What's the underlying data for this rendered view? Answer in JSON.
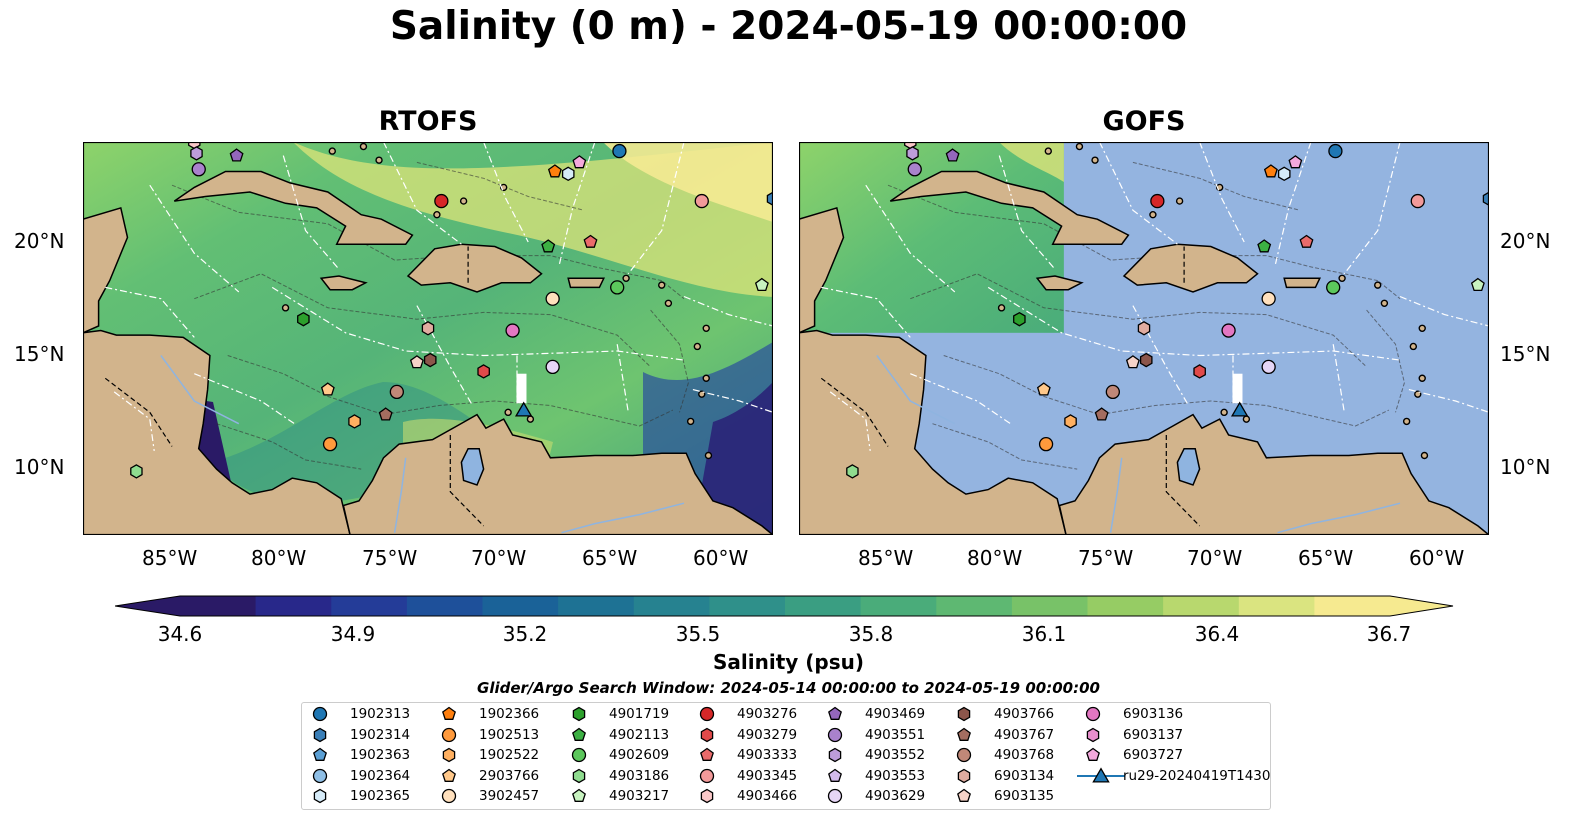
{
  "title": "Salinity (0 m) - 2024-05-19 00:00:00",
  "panels": [
    {
      "title": "RTOFS",
      "mode": "field"
    },
    {
      "title": "GOFS",
      "mode": "masked"
    }
  ],
  "lat_labels": [
    "20°N",
    "15°N",
    "10°N"
  ],
  "lon_labels": [
    "85°W",
    "80°W",
    "75°W",
    "70°W",
    "65°W",
    "60°W"
  ],
  "colorbar": {
    "min": 34.6,
    "max": 36.7,
    "extend": "both",
    "ticks": [
      "34.6",
      "34.9",
      "35.2",
      "35.5",
      "35.8",
      "36.1",
      "36.4",
      "36.7"
    ],
    "colors": [
      "#2a1a66",
      "#28288a",
      "#243c98",
      "#1e509a",
      "#1a6298",
      "#1e7294",
      "#268290",
      "#2f908a",
      "#3a9e82",
      "#4aac7a",
      "#5eb872",
      "#78c268",
      "#96cc64",
      "#b8d86e",
      "#dae480",
      "#f6ea90"
    ],
    "label": "Salinity (psu)"
  },
  "search_window": "Glider/Argo Search Window: 2024-05-14 00:00:00 to 2024-05-19 00:00:00",
  "legend": [
    {
      "label": "1902313",
      "marker": "circle",
      "color": "#1f77b4"
    },
    {
      "label": "1902314",
      "marker": "hexagon",
      "color": "#3a7fb8"
    },
    {
      "label": "1902363",
      "marker": "pentagon",
      "color": "#5a9fd4"
    },
    {
      "label": "1902364",
      "marker": "circle",
      "color": "#8fbfe6"
    },
    {
      "label": "1902365",
      "marker": "hexagon",
      "color": "#d6ebf8"
    },
    {
      "label": "1902366",
      "marker": "pentagon",
      "color": "#ff7f0e"
    },
    {
      "label": "1902513",
      "marker": "circle",
      "color": "#ff9a3c"
    },
    {
      "label": "1902522",
      "marker": "hexagon",
      "color": "#ffb061"
    },
    {
      "label": "2903766",
      "marker": "pentagon",
      "color": "#ffc88a"
    },
    {
      "label": "3902457",
      "marker": "circle",
      "color": "#ffe0bd"
    },
    {
      "label": "4901719",
      "marker": "hexagon",
      "color": "#2ca02c"
    },
    {
      "label": "4902113",
      "marker": "pentagon",
      "color": "#3cb043"
    },
    {
      "label": "4902609",
      "marker": "circle",
      "color": "#5cc75c"
    },
    {
      "label": "4903186",
      "marker": "hexagon",
      "color": "#8fdc8f"
    },
    {
      "label": "4903217",
      "marker": "pentagon",
      "color": "#c8f3c0"
    },
    {
      "label": "4903276",
      "marker": "circle",
      "color": "#d62728"
    },
    {
      "label": "4903279",
      "marker": "hexagon",
      "color": "#e04a4a"
    },
    {
      "label": "4903333",
      "marker": "pentagon",
      "color": "#ea6b6b"
    },
    {
      "label": "4903345",
      "marker": "circle",
      "color": "#f29a9a"
    },
    {
      "label": "4903466",
      "marker": "hexagon",
      "color": "#fac8c8"
    },
    {
      "label": "4903469",
      "marker": "pentagon",
      "color": "#9467bd"
    },
    {
      "label": "4903551",
      "marker": "circle",
      "color": "#a982cc"
    },
    {
      "label": "4903552",
      "marker": "hexagon",
      "color": "#bd9ddb"
    },
    {
      "label": "4903553",
      "marker": "pentagon",
      "color": "#d2baea"
    },
    {
      "label": "4903629",
      "marker": "circle",
      "color": "#e6d6f6"
    },
    {
      "label": "4903766",
      "marker": "hexagon",
      "color": "#8c564b"
    },
    {
      "label": "4903767",
      "marker": "pentagon",
      "color": "#a46d60"
    },
    {
      "label": "4903768",
      "marker": "circle",
      "color": "#c08878"
    },
    {
      "label": "6903134",
      "marker": "hexagon",
      "color": "#e0aca0"
    },
    {
      "label": "6903135",
      "marker": "pentagon",
      "color": "#f6d3c8"
    },
    {
      "label": "6903136",
      "marker": "circle",
      "color": "#e377c2"
    },
    {
      "label": "6903137",
      "marker": "hexagon",
      "color": "#e98fce"
    },
    {
      "label": "6903727",
      "marker": "pentagon",
      "color": "#f4a9dc"
    },
    {
      "label": "ru29-20240419T1430",
      "marker": "triangle-line",
      "color": "#1f77b4"
    }
  ],
  "floats": [
    {
      "label": "1902313",
      "lon": -64.9,
      "lat": 24.0
    },
    {
      "label": "4903276",
      "lon": -72.9,
      "lat": 21.8
    },
    {
      "label": "1902366",
      "lon": -67.8,
      "lat": 23.1
    },
    {
      "label": "1902365",
      "lon": -67.2,
      "lat": 23.0
    },
    {
      "label": "6903727",
      "lon": -66.7,
      "lat": 23.5
    },
    {
      "label": "4903345",
      "lon": -61.2,
      "lat": 21.8
    },
    {
      "label": "1902314",
      "lon": -58.0,
      "lat": 21.9
    },
    {
      "label": "4902113",
      "lon": -68.1,
      "lat": 19.8
    },
    {
      "label": "4903333",
      "lon": -66.2,
      "lat": 20.0
    },
    {
      "label": "4902609",
      "lon": -65.0,
      "lat": 18.0
    },
    {
      "label": "4903217",
      "lon": -58.5,
      "lat": 18.1
    },
    {
      "label": "3902457",
      "lon": -67.9,
      "lat": 17.5
    },
    {
      "label": "4901719",
      "lon": -79.1,
      "lat": 16.6
    },
    {
      "label": "6903134",
      "lon": -73.5,
      "lat": 16.2
    },
    {
      "label": "6903136",
      "lon": -69.7,
      "lat": 16.1
    },
    {
      "label": "6903135",
      "lon": -74.0,
      "lat": 14.7
    },
    {
      "label": "4903766",
      "lon": -73.4,
      "lat": 14.8
    },
    {
      "label": "4903629",
      "lon": -67.9,
      "lat": 14.5
    },
    {
      "label": "4903279",
      "lon": -71.0,
      "lat": 14.3
    },
    {
      "label": "2903766",
      "lon": -78.0,
      "lat": 13.5
    },
    {
      "label": "4903768",
      "lon": -74.9,
      "lat": 13.4
    },
    {
      "label": "4903767",
      "lon": -75.4,
      "lat": 12.4
    },
    {
      "label": "1902522",
      "lon": -76.8,
      "lat": 12.1
    },
    {
      "label": "1902513",
      "lon": -77.9,
      "lat": 11.1
    },
    {
      "label": "4903186",
      "lon": -86.6,
      "lat": 9.9
    },
    {
      "label": "4903466",
      "lon": -84.0,
      "lat": 24.4
    },
    {
      "label": "4903469",
      "lon": -82.1,
      "lat": 23.8
    },
    {
      "label": "4903551",
      "lon": -83.8,
      "lat": 23.2
    },
    {
      "label": "4903552",
      "lon": -83.9,
      "lat": 23.9
    },
    {
      "label": "ru29-20240419T1430",
      "lon": -69.2,
      "lat": 12.6
    }
  ]
}
